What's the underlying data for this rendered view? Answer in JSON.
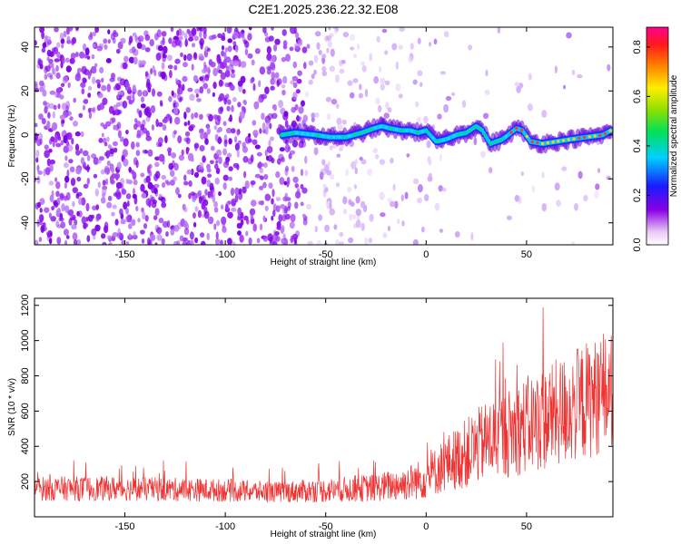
{
  "title": "C2E1.2025.236.22.32.E08",
  "chart_data": [
    {
      "type": "heatmap",
      "xlabel": "Height of straight line (km)",
      "ylabel": "Frequency (Hz)",
      "xlim": [
        -195,
        93
      ],
      "ylim": [
        -50,
        49
      ],
      "xticks": [
        -150,
        -100,
        -50,
        0,
        50
      ],
      "yticks": [
        -40,
        -20,
        0,
        20,
        40
      ],
      "colorbar": {
        "label": "Normalized spectral amplitude",
        "range": [
          0.0,
          0.88
        ],
        "ticks": [
          0.0,
          0.2,
          0.4,
          0.6,
          0.8
        ]
      },
      "signal_trace": {
        "description_note": "frequency of the bright spectral ridge vs height",
        "x": [
          -72,
          -65,
          -55,
          -48,
          -40,
          -32,
          -26,
          -22,
          -18,
          -12,
          -8,
          -4,
          0,
          5,
          10,
          15,
          20,
          25,
          28,
          32,
          38,
          45,
          48,
          52,
          58,
          65,
          72,
          80,
          88,
          92
        ],
        "y": [
          0,
          1,
          0,
          -1,
          -1,
          1,
          3,
          4,
          3,
          2,
          2,
          1,
          2,
          -3,
          -2,
          0,
          1,
          4,
          2,
          -4,
          -2,
          3,
          2,
          -3,
          -4,
          -3,
          -2,
          -1,
          0,
          2
        ]
      }
    },
    {
      "type": "line",
      "xlabel": "Height of straight line (km)",
      "ylabel": "SNR (10 * v/v)",
      "xlim": [
        -195,
        93
      ],
      "ylim": [
        0,
        1240
      ],
      "xticks": [
        -150,
        -100,
        -50,
        0,
        50
      ],
      "yticks": [
        200,
        400,
        600,
        800,
        1000,
        1200
      ],
      "color": "#ee3333",
      "series_envelope": {
        "x": [
          -195,
          -150,
          -100,
          -75,
          -50,
          -25,
          -10,
          0,
          10,
          20,
          30,
          40,
          50,
          60,
          70,
          80,
          93
        ],
        "mean": [
          160,
          160,
          150,
          140,
          150,
          165,
          190,
          220,
          300,
          360,
          430,
          470,
          520,
          560,
          610,
          660,
          720
        ],
        "spread": [
          70,
          70,
          65,
          60,
          70,
          80,
          100,
          120,
          160,
          200,
          230,
          250,
          280,
          300,
          320,
          340,
          330
        ]
      }
    }
  ]
}
